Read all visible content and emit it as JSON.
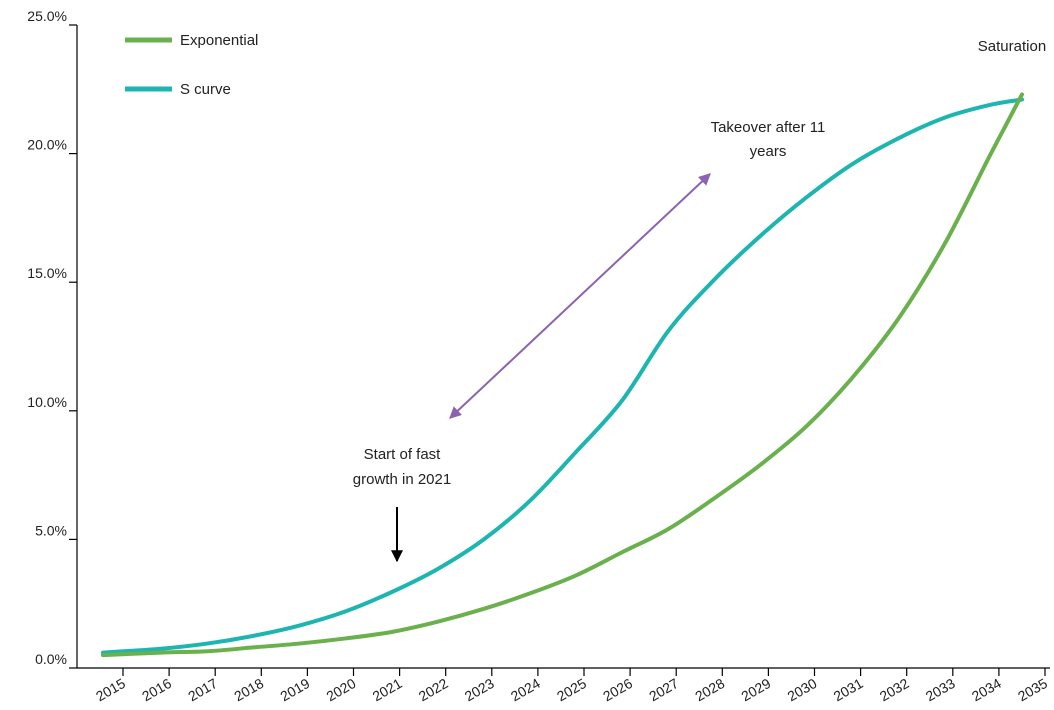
{
  "chart_data": {
    "type": "line",
    "title": "",
    "xlabel": "",
    "ylabel": "",
    "x": [
      "2015",
      "2016",
      "2017",
      "2018",
      "2019",
      "2020",
      "2021",
      "2022",
      "2023",
      "2024",
      "2025",
      "2026",
      "2027",
      "2028",
      "2029",
      "2030",
      "2031",
      "2032",
      "2033",
      "2034",
      "2035"
    ],
    "ylim": [
      0,
      25
    ],
    "y_ticks": [
      "0.0%",
      "5.0%",
      "10.0%",
      "15.0%",
      "20.0%",
      "25.0%"
    ],
    "grid": false,
    "legend_position": "top-left",
    "series": [
      {
        "name": "Exponential",
        "color": "#6ab04c",
        "values": [
          0.5,
          0.6,
          0.65,
          0.8,
          0.95,
          1.15,
          1.4,
          1.8,
          2.3,
          2.9,
          3.6,
          4.5,
          5.4,
          6.6,
          7.9,
          9.4,
          11.3,
          13.6,
          16.5,
          20.0,
          22.3
        ]
      },
      {
        "name": "S curve",
        "color": "#1cb5b0",
        "values": [
          0.6,
          0.75,
          0.95,
          1.25,
          1.65,
          2.2,
          2.95,
          3.85,
          5.0,
          6.5,
          8.4,
          10.4,
          13.1,
          15.1,
          16.8,
          18.3,
          19.6,
          20.6,
          21.4,
          21.9,
          22.1
        ]
      }
    ],
    "annotations": [
      {
        "id": "start",
        "lines": [
          "Start of fast",
          "growth in 2021"
        ],
        "arrow": "down",
        "arrow_color": "#000000"
      },
      {
        "id": "takeover",
        "lines": [
          "Takeover after 11",
          "years"
        ],
        "arrow": "double-diagonal",
        "arrow_color": "#8b63b0"
      },
      {
        "id": "saturation",
        "lines": [
          "Saturation"
        ],
        "arrow": "none"
      }
    ]
  }
}
